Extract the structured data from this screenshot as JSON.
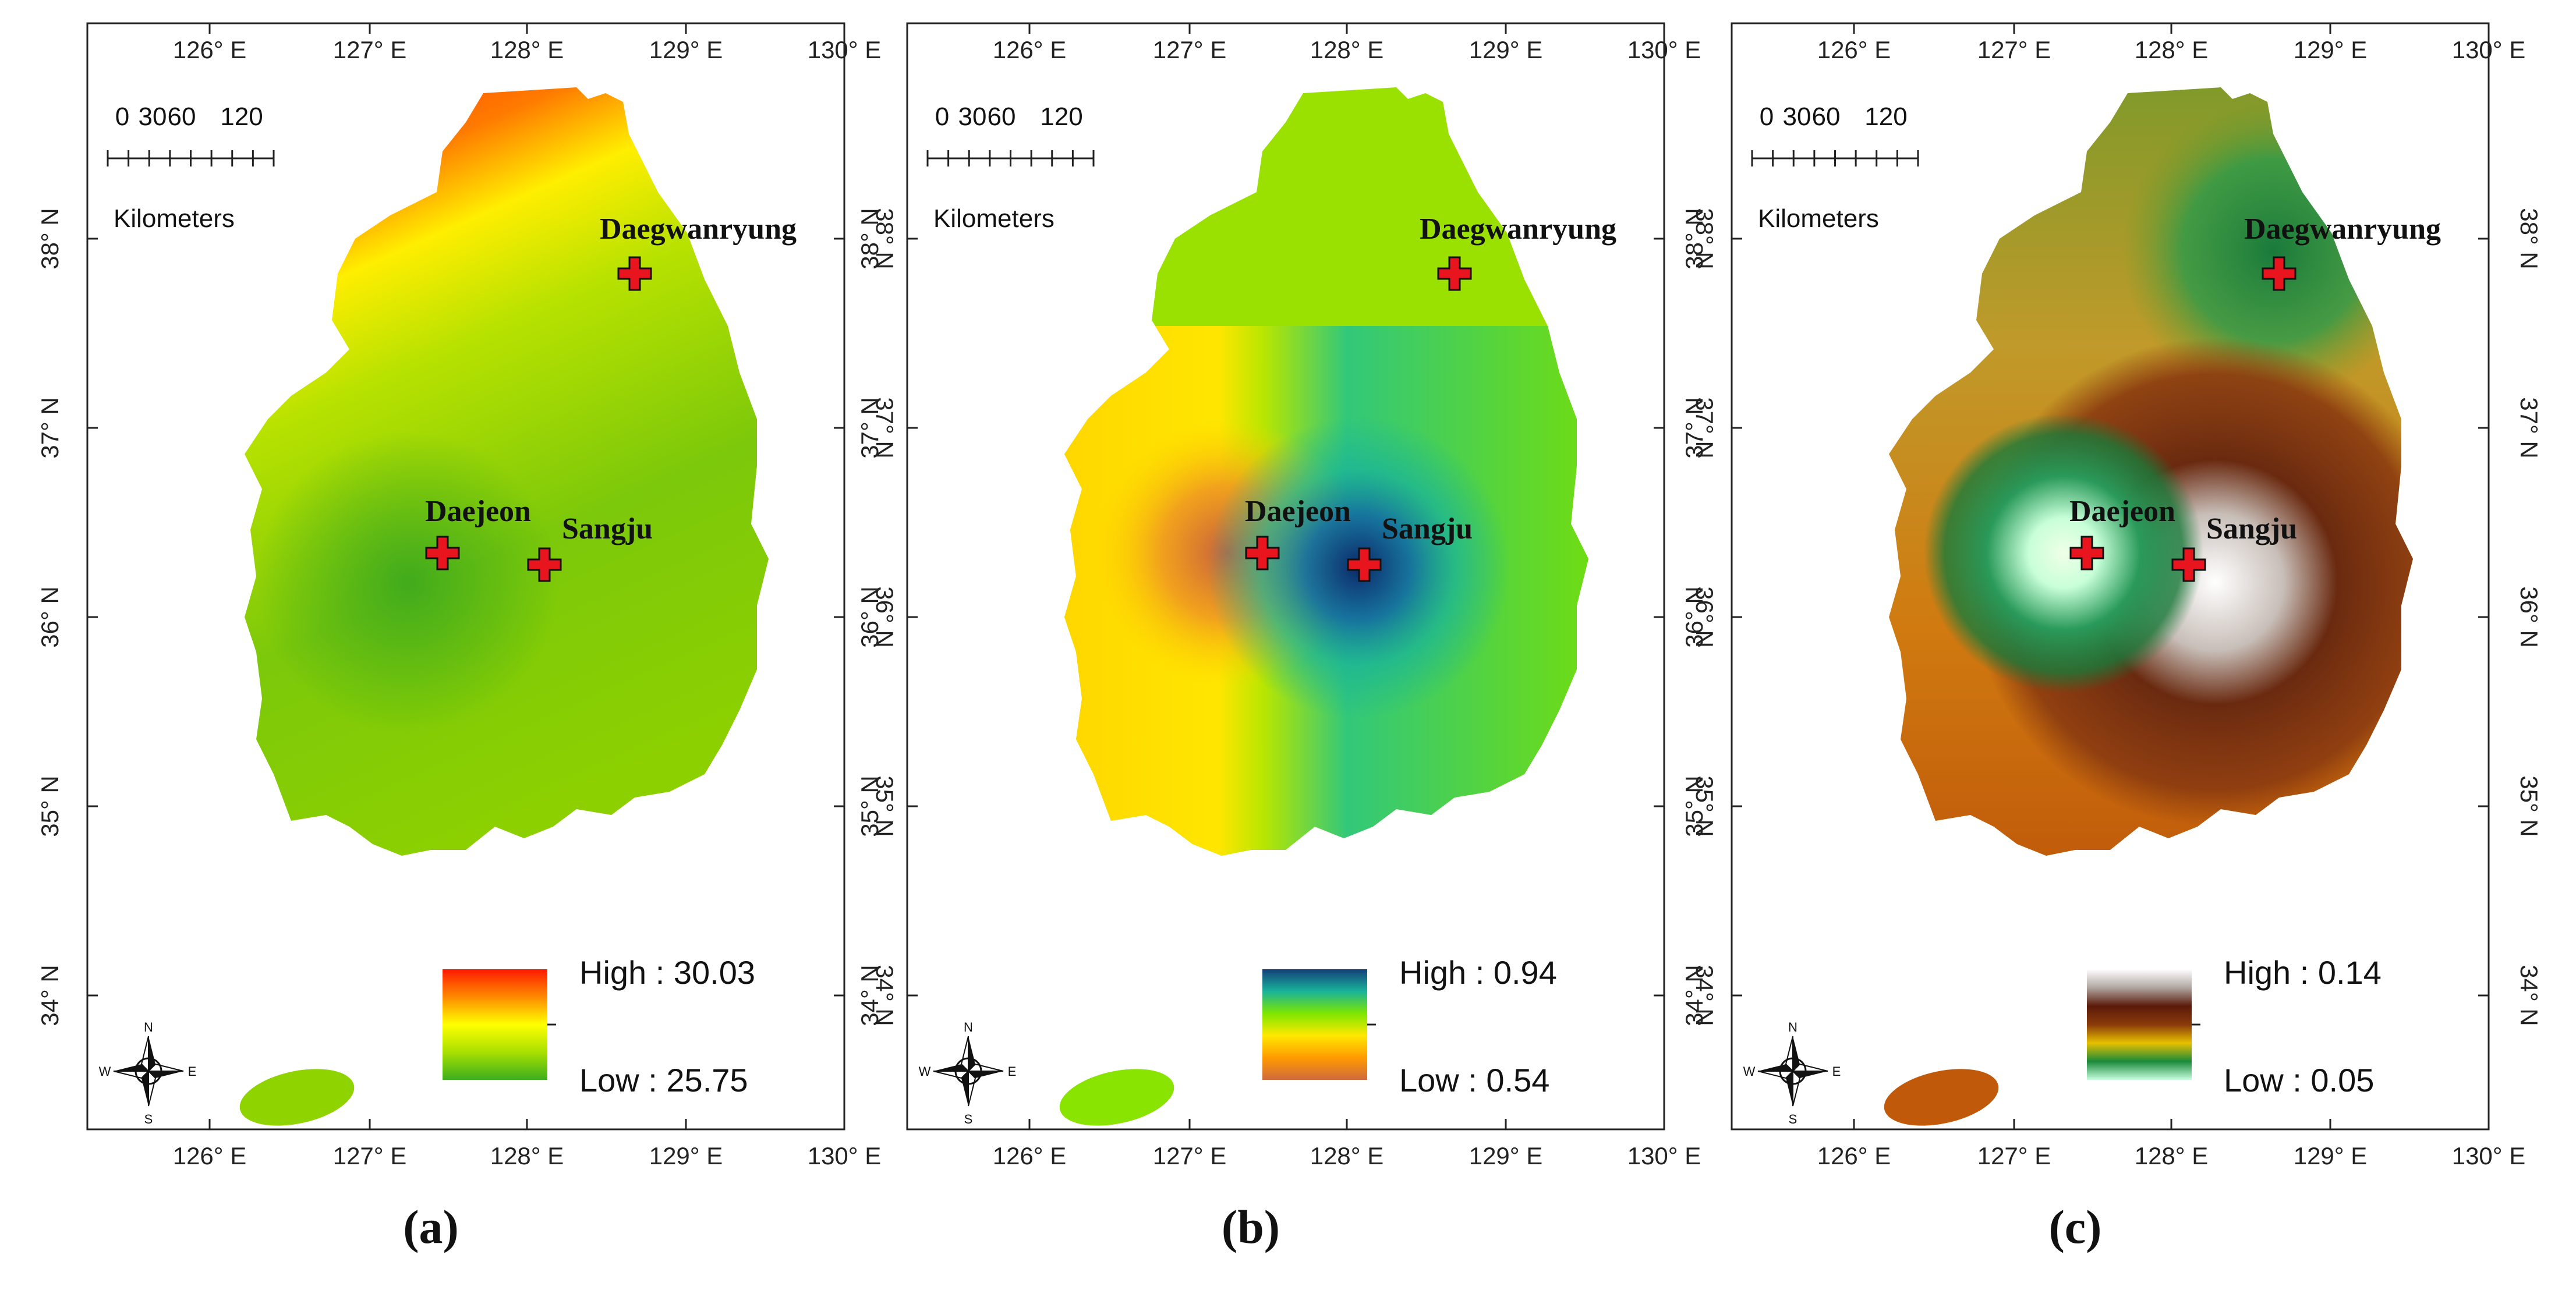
{
  "panels": [
    {
      "id": "a",
      "caption": "(a)",
      "legend_high": "High : 30.03",
      "legend_low": "Low : 25.75",
      "legend_colors": [
        "#ff1a00",
        "#ff8a00",
        "#ffff00",
        "#a8e000",
        "#3cae1e"
      ],
      "jeju_color": "#8fd400"
    },
    {
      "id": "b",
      "caption": "(b)",
      "legend_high": "High : 0.94",
      "legend_low": "Low : 0.54",
      "legend_colors": [
        "#14407a",
        "#19b39a",
        "#7ee600",
        "#ffe800",
        "#ff9a00",
        "#d06a3c"
      ],
      "jeju_color": "#88e400"
    },
    {
      "id": "c",
      "caption": "(c)",
      "legend_high": "High : 0.14",
      "legend_low": "Low : 0.05",
      "legend_colors": [
        "#ffffff",
        "#b0a6a0",
        "#5a1a0a",
        "#8a3a0a",
        "#e8c000",
        "#1a8a3a",
        "#c8ffe0"
      ],
      "jeju_color": "#c05a0a"
    }
  ],
  "x_ticks": [
    "126° E",
    "127° E",
    "128° E",
    "129° E",
    "130° E"
  ],
  "y_ticks": [
    "38° N",
    "37° N",
    "36° N",
    "35° N",
    "34° N"
  ],
  "scale_bar": {
    "labels": [
      "0",
      "30",
      "60",
      "120"
    ],
    "unit": "Kilometers"
  },
  "stations": [
    "Daegwanryung",
    "Daejeon",
    "Sangju"
  ],
  "compass": {
    "n": "N",
    "s": "S",
    "e": "E",
    "w": "W"
  }
}
